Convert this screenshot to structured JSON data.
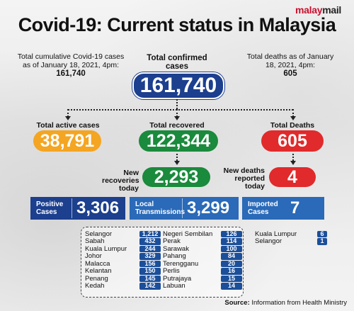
{
  "brand": {
    "part1": "malay",
    "part2": "mail"
  },
  "title": "Covid-19: Current status in Malaysia",
  "left_note": {
    "text": "Total cumulative Covid-19 cases as of January 18, 2021, 4pm:",
    "value": "161,740"
  },
  "center_note": {
    "label": "Total confirmed cases",
    "value": "161,740"
  },
  "right_note": {
    "text": "Total deaths as of January 18, 2021, 4pm:",
    "value": "605"
  },
  "active": {
    "label": "Total active cases",
    "value": "38,791"
  },
  "recovered": {
    "label": "Total recovered",
    "value": "122,344"
  },
  "deaths": {
    "label": "Total Deaths",
    "value": "605"
  },
  "new_recoveries": {
    "label": "New recoveries today",
    "value": "2,293"
  },
  "new_deaths": {
    "label": "New deaths reported today",
    "value": "4"
  },
  "positive": {
    "label": "Positive Cases",
    "value": "3,306"
  },
  "local": {
    "label": "Local Transmissions",
    "value": "3,299"
  },
  "imported": {
    "label": "Imported Cases",
    "value": "7"
  },
  "local_states_col1": [
    {
      "name": "Selangor",
      "value": "1,212"
    },
    {
      "name": "Sabah",
      "value": "432"
    },
    {
      "name": "Kuala Lumpur",
      "value": "244"
    },
    {
      "name": "Johor",
      "value": "329"
    },
    {
      "name": "Malacca",
      "value": "156"
    },
    {
      "name": "Kelantan",
      "value": "150"
    },
    {
      "name": "Penang",
      "value": "145"
    },
    {
      "name": "Kedah",
      "value": "142"
    }
  ],
  "local_states_col2": [
    {
      "name": "Negeri Sembilan",
      "value": "126"
    },
    {
      "name": "Perak",
      "value": "114"
    },
    {
      "name": "Sarawak",
      "value": "100"
    },
    {
      "name": "Pahang",
      "value": "84"
    },
    {
      "name": "Terengganu",
      "value": "20"
    },
    {
      "name": "Perlis",
      "value": "16"
    },
    {
      "name": "Putrajaya",
      "value": "15"
    },
    {
      "name": "Labuan",
      "value": "14"
    }
  ],
  "imported_states": [
    {
      "name": "Kuala Lumpur",
      "value": "6"
    },
    {
      "name": "Selangor",
      "value": "1"
    }
  ],
  "source": {
    "label": "Source:",
    "text": "Information from Health Ministry"
  },
  "colors": {
    "blue": "#1c3f8e",
    "orange": "#f4a521",
    "green": "#1a8a3c",
    "red": "#e12a2b",
    "badge": "#1c4f9a",
    "light_blue": "#2a6ab8"
  }
}
